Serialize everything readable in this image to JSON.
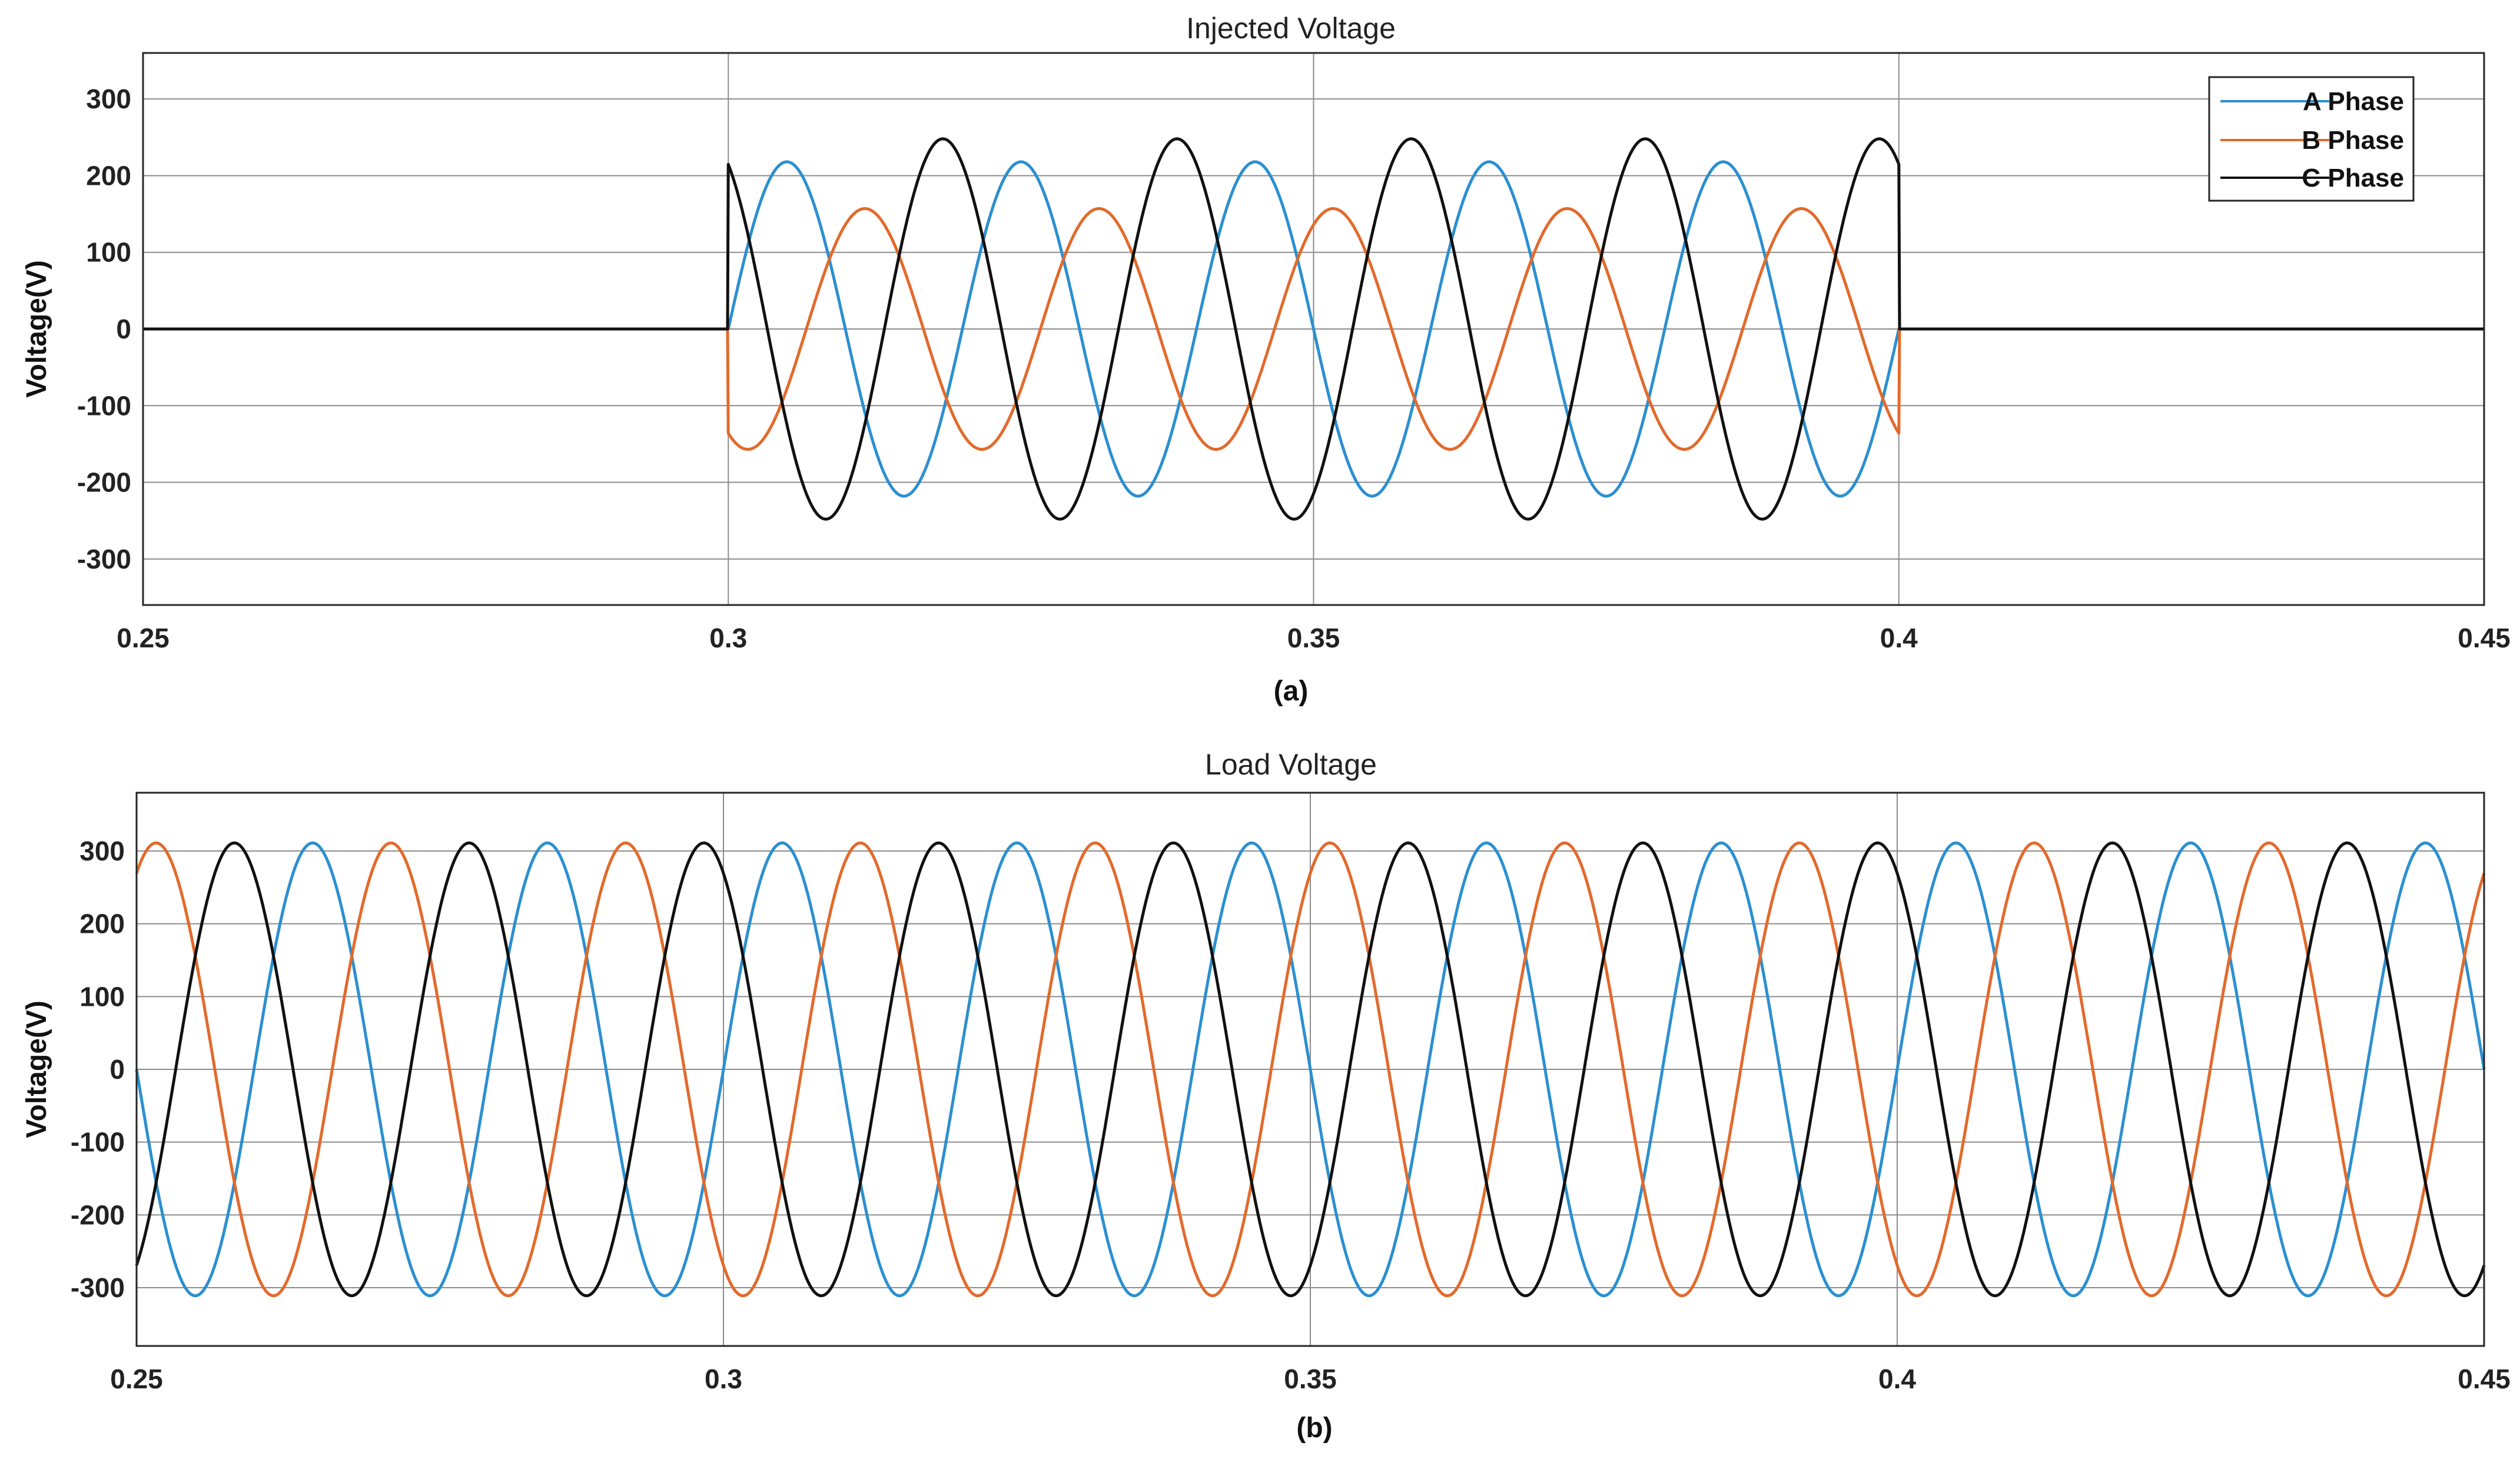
{
  "chart_data": [
    {
      "type": "line",
      "title": "Injected Voltage",
      "caption": "(a)",
      "xlabel": "",
      "ylabel": "Voltage(V)",
      "xlim": [
        0.25,
        0.45
      ],
      "ylim": [
        -360,
        360
      ],
      "xticks": [
        "0.25",
        "0.3",
        "0.35",
        "0.4",
        "0.45"
      ],
      "yticks": [
        "300",
        "200",
        "100",
        "0",
        "-100",
        "-200",
        "-300"
      ],
      "grid": true,
      "legend": "top-right",
      "active_interval": [
        0.3,
        0.4
      ],
      "series": [
        {
          "name": "A Phase",
          "color": "#2b8fd0",
          "amplitude": 218,
          "frequency_hz": 50,
          "phase_deg": 0,
          "value_outside_interval": 0
        },
        {
          "name": "B Phase",
          "color": "#e26a2c",
          "amplitude": 157,
          "frequency_hz": 50,
          "phase_deg": -120,
          "value_outside_interval": 0
        },
        {
          "name": "C Phase",
          "color": "#111111",
          "amplitude": 248,
          "frequency_hz": 50,
          "phase_deg": 120,
          "value_outside_interval": 0
        }
      ]
    },
    {
      "type": "line",
      "title": "Load Voltage",
      "caption": "(b)",
      "xlabel": "",
      "ylabel": "Voltage(V)",
      "xlim": [
        0.25,
        0.45
      ],
      "ylim": [
        -380,
        380
      ],
      "xticks": [
        "0.25",
        "0.3",
        "0.35",
        "0.4",
        "0.45"
      ],
      "yticks": [
        "300",
        "200",
        "100",
        "0",
        "-100",
        "-200",
        "-300"
      ],
      "grid": true,
      "series": [
        {
          "name": "A Phase",
          "color": "#2b8fd0",
          "amplitude": 311,
          "frequency_hz": 50,
          "phase_deg": 0
        },
        {
          "name": "B Phase",
          "color": "#e26a2c",
          "amplitude": 311,
          "frequency_hz": 50,
          "phase_deg": -120
        },
        {
          "name": "C Phase",
          "color": "#111111",
          "amplitude": 311,
          "frequency_hz": 50,
          "phase_deg": 120
        }
      ]
    }
  ]
}
